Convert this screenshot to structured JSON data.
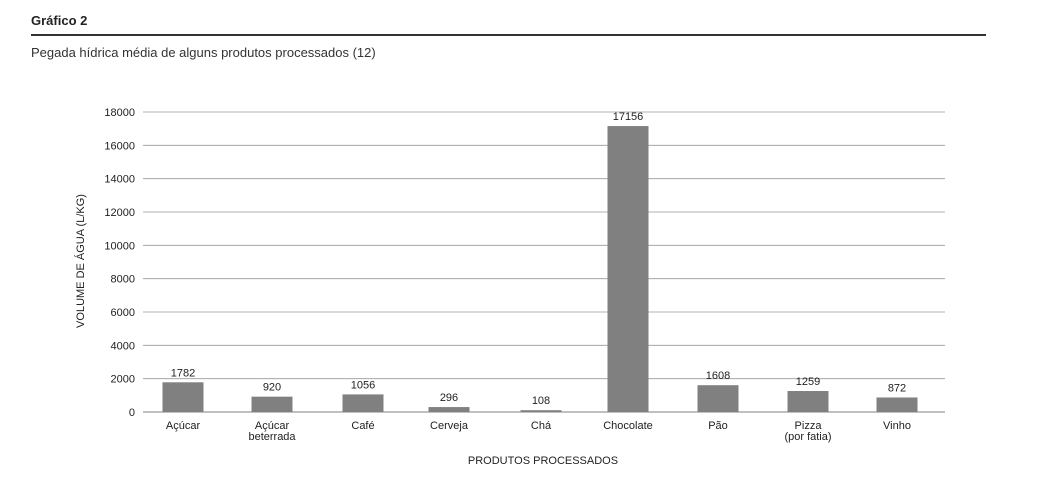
{
  "figure_label": "Gráfico 2",
  "subtitle": "Pegada hídrica média de alguns produtos processados (12)",
  "chart_data": {
    "type": "bar",
    "title": "",
    "xlabel": "PRODUTOS PROCESSADOS",
    "ylabel": "VOLUME DE ÁGUA (L/KG)",
    "ylim": [
      0,
      18000
    ],
    "yticks": [
      0,
      2000,
      4000,
      6000,
      8000,
      10000,
      12000,
      14000,
      16000,
      18000
    ],
    "grid": true,
    "categories": [
      [
        "Açúcar"
      ],
      [
        "Açúcar",
        "beterrada"
      ],
      [
        "Café"
      ],
      [
        "Cerveja"
      ],
      [
        "Chá"
      ],
      [
        "Chocolate"
      ],
      [
        "Pão"
      ],
      [
        "Pizza",
        "(por fatia)"
      ],
      [
        "Vinho"
      ]
    ],
    "values": [
      1782,
      920,
      1056,
      296,
      108,
      17156,
      1608,
      1259,
      872
    ],
    "bar_color": "#808080",
    "grid_color": "#9a9a9a"
  }
}
